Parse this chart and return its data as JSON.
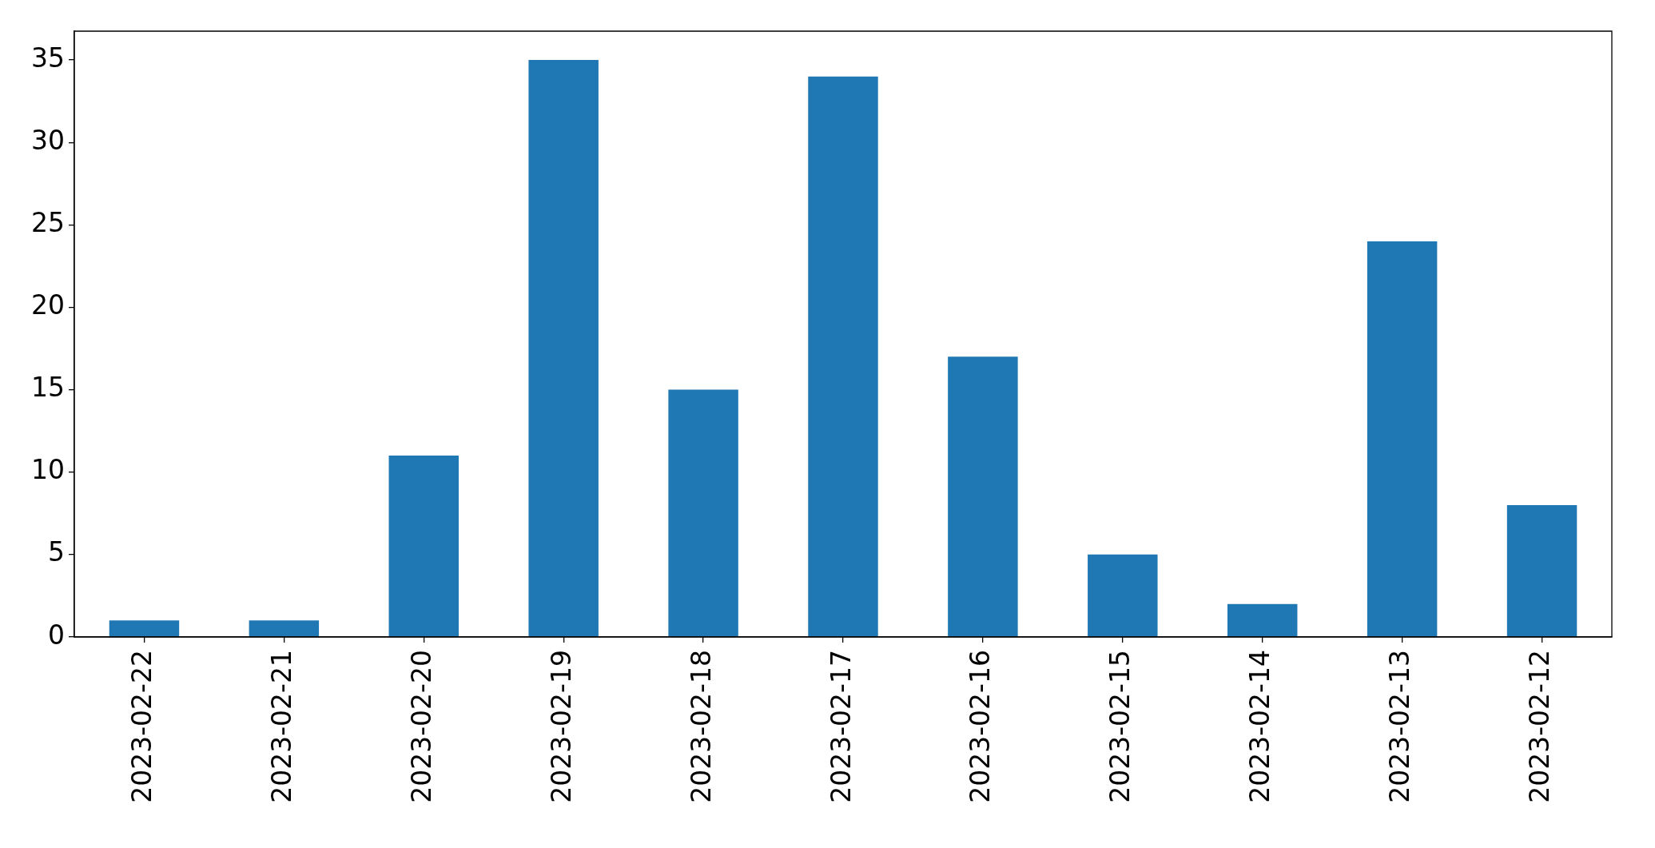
{
  "chart_data": {
    "type": "bar",
    "categories": [
      "2023-02-22",
      "2023-02-21",
      "2023-02-20",
      "2023-02-19",
      "2023-02-18",
      "2023-02-17",
      "2023-02-16",
      "2023-02-15",
      "2023-02-14",
      "2023-02-13",
      "2023-02-12"
    ],
    "values": [
      1,
      1,
      11,
      35,
      15,
      34,
      17,
      5,
      2,
      24,
      8
    ],
    "color": "#1f77b4",
    "ylim": [
      0,
      36.75
    ],
    "yticks": [
      0,
      5,
      10,
      15,
      20,
      25,
      30,
      35
    ],
    "legend": false
  }
}
